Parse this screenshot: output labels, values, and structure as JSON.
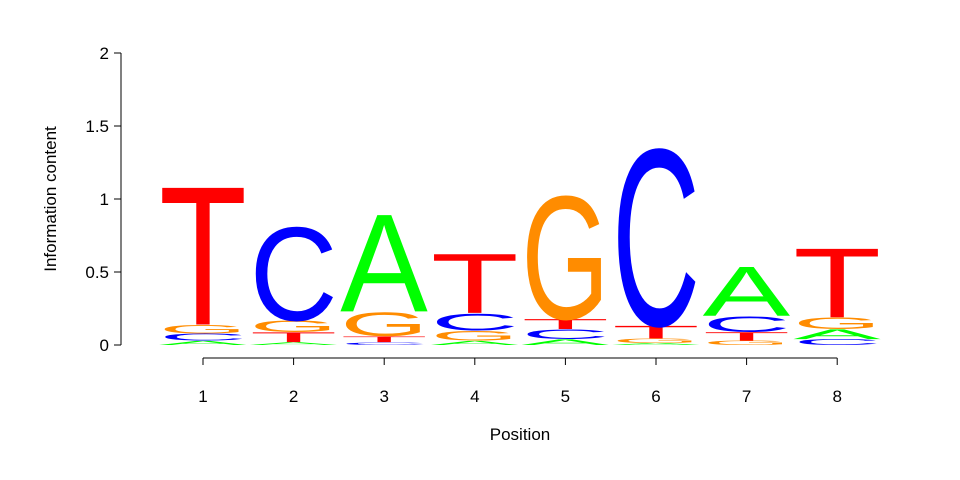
{
  "chart_data": {
    "type": "sequence-logo",
    "xlabel": "Position",
    "ylabel": "Information content",
    "ylim": [
      0,
      2
    ],
    "yticks": [
      {
        "value": 0,
        "label": "0"
      },
      {
        "value": 0.5,
        "label": "0.5"
      },
      {
        "value": 1,
        "label": "1"
      },
      {
        "value": 1.5,
        "label": "1.5"
      },
      {
        "value": 2,
        "label": "2"
      }
    ],
    "positions": [
      {
        "label": "1",
        "stack": [
          {
            "base": "A",
            "height": 0.03
          },
          {
            "base": "C",
            "height": 0.05
          },
          {
            "base": "G",
            "height": 0.06
          },
          {
            "base": "T",
            "height": 0.98
          }
        ]
      },
      {
        "label": "2",
        "stack": [
          {
            "base": "A",
            "height": 0.02
          },
          {
            "base": "T",
            "height": 0.07
          },
          {
            "base": "G",
            "height": 0.08
          },
          {
            "base": "C",
            "height": 0.66
          }
        ]
      },
      {
        "label": "3",
        "stack": [
          {
            "base": "C",
            "height": 0.02
          },
          {
            "base": "T",
            "height": 0.04
          },
          {
            "base": "G",
            "height": 0.17
          },
          {
            "base": "A",
            "height": 0.69
          }
        ]
      },
      {
        "label": "4",
        "stack": [
          {
            "base": "A",
            "height": 0.03
          },
          {
            "base": "G",
            "height": 0.07
          },
          {
            "base": "C",
            "height": 0.12
          },
          {
            "base": "T",
            "height": 0.42
          }
        ]
      },
      {
        "label": "5",
        "stack": [
          {
            "base": "A",
            "height": 0.04
          },
          {
            "base": "C",
            "height": 0.07
          },
          {
            "base": "T",
            "height": 0.07
          },
          {
            "base": "G",
            "height": 0.87
          }
        ]
      },
      {
        "label": "6",
        "stack": [
          {
            "base": "A",
            "height": 0.015
          },
          {
            "base": "G",
            "height": 0.03
          },
          {
            "base": "T",
            "height": 0.09
          },
          {
            "base": "C",
            "height": 1.25
          }
        ]
      },
      {
        "label": "7",
        "stack": [
          {
            "base": "G",
            "height": 0.03
          },
          {
            "base": "T",
            "height": 0.06
          },
          {
            "base": "C",
            "height": 0.11
          },
          {
            "base": "A",
            "height": 0.35
          }
        ]
      },
      {
        "label": "8",
        "stack": [
          {
            "base": "C",
            "height": 0.04
          },
          {
            "base": "A",
            "height": 0.07
          },
          {
            "base": "G",
            "height": 0.08
          },
          {
            "base": "T",
            "height": 0.49
          }
        ]
      }
    ],
    "colors": {
      "A": "#00ff00",
      "C": "#0000ff",
      "G": "#ff8c00",
      "T": "#ff0000"
    },
    "grid": false,
    "legend": "none"
  }
}
